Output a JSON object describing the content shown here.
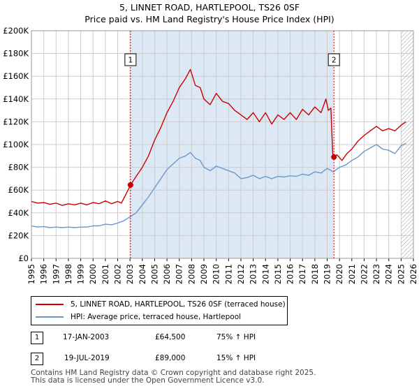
{
  "header": {
    "title": "5, LINNET ROAD, HARTLEPOOL, TS26 0SF",
    "subtitle": "Price paid vs. HM Land Registry's House Price Index (HPI)"
  },
  "colors": {
    "price": "#cc0000",
    "hpi": "#6699cc",
    "shade": "#dde8f5",
    "grid": "#cccccc",
    "sale": "#cc0000"
  },
  "chart_data": {
    "type": "line",
    "xlim": [
      1995,
      2026
    ],
    "ylim": [
      0,
      200000
    ],
    "y_ticks": [
      0,
      20000,
      40000,
      60000,
      80000,
      100000,
      120000,
      140000,
      160000,
      180000,
      200000
    ],
    "y_tick_labels": [
      "£0",
      "£20K",
      "£40K",
      "£60K",
      "£80K",
      "£100K",
      "£120K",
      "£140K",
      "£160K",
      "£180K",
      "£200K"
    ],
    "x_ticks": [
      "1995",
      "1996",
      "1997",
      "1998",
      "1999",
      "2000",
      "2001",
      "2002",
      "2003",
      "2004",
      "2005",
      "2006",
      "2007",
      "2008",
      "2009",
      "2010",
      "2011",
      "2012",
      "2013",
      "2014",
      "2015",
      "2016",
      "2017",
      "2018",
      "2019",
      "2020",
      "2021",
      "2022",
      "2023",
      "2024",
      "2025",
      "2026"
    ],
    "shaded_ranges": [
      [
        2003.04,
        2019.55
      ]
    ],
    "hatch_from": 2025.0,
    "markers": [
      {
        "label": "1",
        "x": 2003.04,
        "y": 64500
      },
      {
        "label": "2",
        "x": 2019.55,
        "y": 89000
      }
    ],
    "series": [
      {
        "name": "5, LINNET ROAD, HARTLEPOOL, TS26 0SF (terraced house)",
        "points": [
          [
            1995.0,
            50000
          ],
          [
            1995.5,
            48500
          ],
          [
            1996.0,
            49000
          ],
          [
            1996.5,
            47500
          ],
          [
            1997.0,
            48500
          ],
          [
            1997.5,
            46500
          ],
          [
            1998.0,
            48000
          ],
          [
            1998.5,
            47000
          ],
          [
            1999.0,
            48500
          ],
          [
            1999.5,
            47000
          ],
          [
            2000.0,
            49000
          ],
          [
            2000.5,
            48000
          ],
          [
            2001.0,
            50500
          ],
          [
            2001.5,
            48000
          ],
          [
            2002.0,
            50000
          ],
          [
            2002.3,
            48500
          ],
          [
            2002.7,
            57000
          ],
          [
            2003.04,
            64500
          ],
          [
            2003.5,
            72000
          ],
          [
            2004.0,
            80000
          ],
          [
            2004.5,
            90000
          ],
          [
            2005.0,
            104000
          ],
          [
            2005.5,
            115000
          ],
          [
            2006.0,
            128000
          ],
          [
            2006.5,
            138000
          ],
          [
            2007.0,
            150000
          ],
          [
            2007.5,
            158000
          ],
          [
            2007.9,
            166000
          ],
          [
            2008.3,
            152000
          ],
          [
            2008.7,
            150000
          ],
          [
            2009.0,
            140000
          ],
          [
            2009.5,
            135000
          ],
          [
            2010.0,
            145000
          ],
          [
            2010.5,
            138000
          ],
          [
            2011.0,
            136000
          ],
          [
            2011.5,
            130000
          ],
          [
            2012.0,
            126000
          ],
          [
            2012.5,
            122000
          ],
          [
            2013.0,
            128000
          ],
          [
            2013.5,
            120000
          ],
          [
            2014.0,
            128000
          ],
          [
            2014.5,
            118000
          ],
          [
            2015.0,
            126000
          ],
          [
            2015.5,
            122000
          ],
          [
            2016.0,
            128000
          ],
          [
            2016.5,
            122000
          ],
          [
            2017.0,
            131000
          ],
          [
            2017.5,
            126000
          ],
          [
            2018.0,
            133000
          ],
          [
            2018.5,
            128000
          ],
          [
            2018.9,
            140000
          ],
          [
            2019.1,
            130000
          ],
          [
            2019.3,
            132000
          ],
          [
            2019.45,
            92000
          ],
          [
            2019.55,
            89000
          ],
          [
            2019.8,
            91000
          ],
          [
            2020.2,
            86000
          ],
          [
            2020.6,
            92000
          ],
          [
            2021.0,
            96000
          ],
          [
            2021.5,
            103000
          ],
          [
            2022.0,
            108000
          ],
          [
            2022.5,
            112000
          ],
          [
            2023.0,
            116000
          ],
          [
            2023.5,
            112000
          ],
          [
            2024.0,
            114000
          ],
          [
            2024.5,
            112000
          ],
          [
            2025.0,
            117000
          ],
          [
            2025.4,
            120000
          ]
        ]
      },
      {
        "name": "HPI: Average price, terraced house, Hartlepool",
        "points": [
          [
            1995.0,
            28500
          ],
          [
            1995.5,
            27500
          ],
          [
            1996.0,
            28000
          ],
          [
            1996.5,
            27000
          ],
          [
            1997.0,
            27500
          ],
          [
            1997.5,
            27000
          ],
          [
            1998.0,
            27500
          ],
          [
            1998.5,
            27000
          ],
          [
            1999.0,
            27500
          ],
          [
            1999.5,
            27500
          ],
          [
            2000.0,
            28500
          ],
          [
            2000.5,
            28500
          ],
          [
            2001.0,
            30000
          ],
          [
            2001.5,
            29500
          ],
          [
            2002.0,
            31000
          ],
          [
            2002.5,
            33000
          ],
          [
            2003.0,
            36500
          ],
          [
            2003.5,
            40000
          ],
          [
            2004.0,
            47000
          ],
          [
            2004.5,
            54000
          ],
          [
            2005.0,
            62000
          ],
          [
            2005.5,
            70000
          ],
          [
            2006.0,
            78000
          ],
          [
            2006.5,
            83000
          ],
          [
            2007.0,
            88000
          ],
          [
            2007.5,
            90000
          ],
          [
            2007.9,
            93000
          ],
          [
            2008.3,
            88000
          ],
          [
            2008.7,
            86000
          ],
          [
            2009.0,
            80000
          ],
          [
            2009.5,
            77000
          ],
          [
            2010.0,
            81000
          ],
          [
            2010.5,
            79000
          ],
          [
            2011.0,
            77000
          ],
          [
            2011.5,
            75000
          ],
          [
            2012.0,
            70000
          ],
          [
            2012.5,
            71000
          ],
          [
            2013.0,
            73000
          ],
          [
            2013.5,
            70000
          ],
          [
            2014.0,
            72000
          ],
          [
            2014.5,
            70000
          ],
          [
            2015.0,
            72000
          ],
          [
            2015.5,
            71500
          ],
          [
            2016.0,
            72500
          ],
          [
            2016.5,
            72000
          ],
          [
            2017.0,
            74000
          ],
          [
            2017.5,
            73000
          ],
          [
            2018.0,
            76000
          ],
          [
            2018.5,
            75000
          ],
          [
            2019.0,
            79000
          ],
          [
            2019.5,
            76000
          ],
          [
            2020.0,
            80000
          ],
          [
            2020.5,
            82000
          ],
          [
            2021.0,
            86000
          ],
          [
            2021.5,
            89000
          ],
          [
            2022.0,
            94000
          ],
          [
            2022.5,
            97000
          ],
          [
            2023.0,
            100000
          ],
          [
            2023.5,
            96000
          ],
          [
            2024.0,
            95000
          ],
          [
            2024.5,
            92000
          ],
          [
            2025.0,
            99000
          ],
          [
            2025.4,
            101000
          ]
        ]
      }
    ]
  },
  "legend": {
    "price_label": "5, LINNET ROAD, HARTLEPOOL, TS26 0SF (terraced house)",
    "hpi_label": "HPI: Average price, terraced house, Hartlepool"
  },
  "transactions": [
    {
      "id": "1",
      "date": "17-JAN-2003",
      "price": "£64,500",
      "hpi": "75% ↑ HPI"
    },
    {
      "id": "2",
      "date": "19-JUL-2019",
      "price": "£89,000",
      "hpi": "15% ↑ HPI"
    }
  ],
  "footer": {
    "line1": "Contains HM Land Registry data © Crown copyright and database right 2025.",
    "line2": "This data is licensed under the Open Government Licence v3.0."
  }
}
